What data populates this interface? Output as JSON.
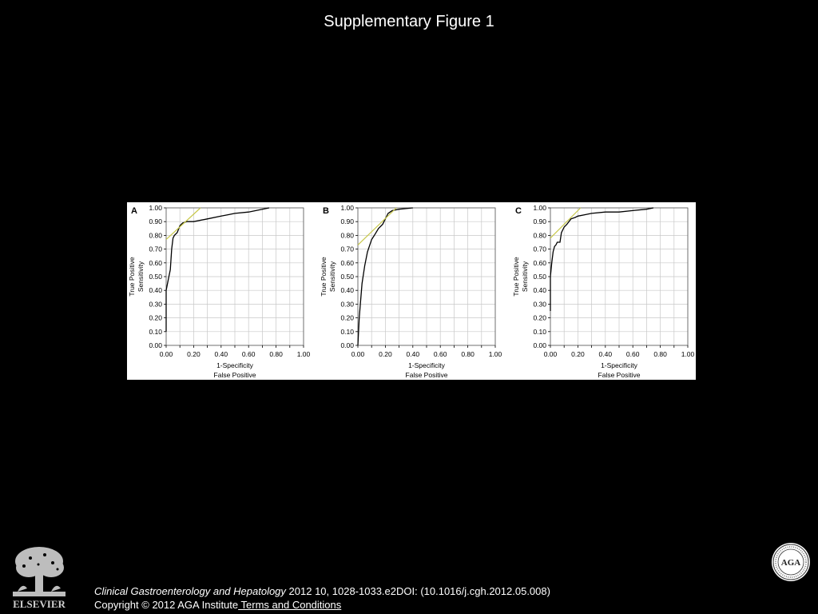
{
  "slide": {
    "title": "Supplementary Figure 1"
  },
  "footer": {
    "journal": "Clinical Gastroenterology and Hepatology",
    "citation_rest": " 2012 10, 1028-1033.e2DOI: (10.1016/j.cgh.2012.05.008)",
    "copyright": "Copyright © 2012 AGA Institute",
    "terms_link": " Terms and Conditions",
    "logo_text": "ELSEVIER",
    "seal_text": "AGA"
  },
  "colors": {
    "background": "#000000",
    "roc_curve": "#000000",
    "tangent_line": "#c8c84a",
    "grid": "#c8c8c8"
  },
  "chart_data": [
    {
      "type": "line",
      "panel_label": "A",
      "xlabel": [
        "1-Specificity",
        "False Positive"
      ],
      "ylabel": [
        "True Positive",
        "Sensitivity"
      ],
      "xlim": [
        0,
        1
      ],
      "ylim": [
        0,
        1
      ],
      "x_ticks": [
        "0.00",
        "0.20",
        "0.40",
        "0.60",
        "0.80",
        "1.00"
      ],
      "y_ticks": [
        "0.00",
        "0.10",
        "0.20",
        "0.30",
        "0.40",
        "0.50",
        "0.60",
        "0.70",
        "0.80",
        "0.90",
        "1.00"
      ],
      "grid": true,
      "series": [
        {
          "role": "roc",
          "x": [
            0.0,
            0.0,
            0.01,
            0.02,
            0.03,
            0.04,
            0.05,
            0.06,
            0.08,
            0.1,
            0.12,
            0.15,
            0.2,
            0.3,
            0.4,
            0.45,
            0.5,
            0.6,
            0.7,
            0.75
          ],
          "y": [
            0.1,
            0.4,
            0.45,
            0.5,
            0.55,
            0.7,
            0.78,
            0.8,
            0.82,
            0.87,
            0.89,
            0.9,
            0.9,
            0.92,
            0.94,
            0.95,
            0.96,
            0.97,
            0.99,
            1.0
          ]
        },
        {
          "role": "tangent",
          "x": [
            0.0,
            0.25
          ],
          "y": [
            0.77,
            1.0
          ]
        }
      ]
    },
    {
      "type": "line",
      "panel_label": "B",
      "xlabel": [
        "1-Specificity",
        "False Positive"
      ],
      "ylabel": [
        "True Positive",
        "Sensitivity"
      ],
      "xlim": [
        0,
        1
      ],
      "ylim": [
        0,
        1
      ],
      "x_ticks": [
        "0.00",
        "0.20",
        "0.40",
        "0.60",
        "0.80",
        "1.00"
      ],
      "y_ticks": [
        "0.00",
        "0.10",
        "0.20",
        "0.30",
        "0.40",
        "0.50",
        "0.60",
        "0.70",
        "0.80",
        "0.90",
        "1.00"
      ],
      "grid": true,
      "series": [
        {
          "role": "roc",
          "x": [
            0.0,
            0.01,
            0.03,
            0.05,
            0.07,
            0.1,
            0.12,
            0.15,
            0.18,
            0.2,
            0.22,
            0.25,
            0.3,
            0.35,
            0.4
          ],
          "y": [
            0.0,
            0.2,
            0.45,
            0.58,
            0.68,
            0.77,
            0.8,
            0.85,
            0.88,
            0.92,
            0.96,
            0.98,
            0.99,
            0.995,
            1.0
          ]
        },
        {
          "role": "tangent",
          "x": [
            0.0,
            0.28
          ],
          "y": [
            0.73,
            1.0
          ]
        }
      ]
    },
    {
      "type": "line",
      "panel_label": "C",
      "xlabel": [
        "1-Specificity",
        "False Positive"
      ],
      "ylabel": [
        "True Positive",
        "Sensitivity"
      ],
      "xlim": [
        0,
        1
      ],
      "ylim": [
        0,
        1
      ],
      "x_ticks": [
        "0.00",
        "0.20",
        "0.40",
        "0.60",
        "0.80",
        "1.00"
      ],
      "y_ticks": [
        "0.00",
        "0.10",
        "0.20",
        "0.30",
        "0.40",
        "0.50",
        "0.60",
        "0.70",
        "0.80",
        "0.90",
        "1.00"
      ],
      "grid": true,
      "series": [
        {
          "role": "roc",
          "x": [
            0.0,
            0.0,
            0.01,
            0.02,
            0.03,
            0.04,
            0.05,
            0.07,
            0.08,
            0.1,
            0.12,
            0.15,
            0.18,
            0.2,
            0.25,
            0.3,
            0.4,
            0.5,
            0.6,
            0.7,
            0.75
          ],
          "y": [
            0.25,
            0.5,
            0.6,
            0.68,
            0.72,
            0.73,
            0.75,
            0.75,
            0.82,
            0.86,
            0.88,
            0.92,
            0.93,
            0.94,
            0.95,
            0.96,
            0.97,
            0.97,
            0.98,
            0.99,
            1.0
          ]
        },
        {
          "role": "tangent",
          "x": [
            0.0,
            0.22
          ],
          "y": [
            0.78,
            1.0
          ]
        }
      ]
    }
  ]
}
